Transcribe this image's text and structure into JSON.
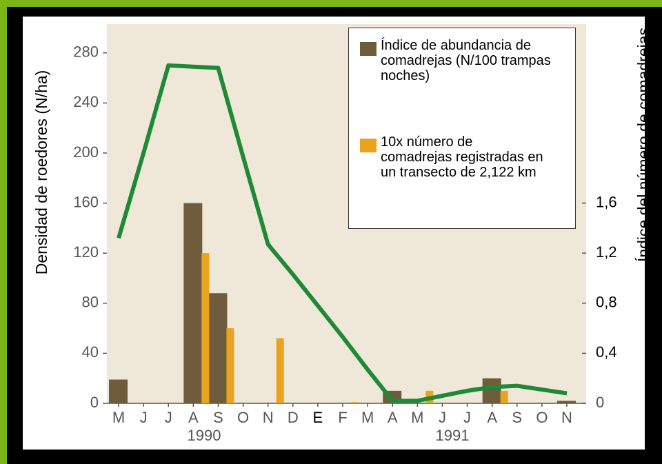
{
  "chart_data": {
    "type": "bar",
    "y_label": "Densidad de roedores (N/ha)",
    "y2_label": "Índice del número de comadrejas",
    "categories": [
      "M",
      "J",
      "J",
      "A",
      "S",
      "O",
      "N",
      "D",
      "E",
      "F",
      "M",
      "A",
      "M",
      "J",
      "J",
      "A",
      "S",
      "O",
      "N"
    ],
    "group_labels": [
      "1990",
      "1991"
    ],
    "series": [
      {
        "name": "Índice de abundancia de comadrejas (N/100 trampas noches)",
        "color": "#6e5c3c",
        "values": [
          19,
          null,
          null,
          160,
          88,
          null,
          null,
          null,
          null,
          null,
          null,
          10,
          null,
          null,
          null,
          20,
          null,
          null,
          2
        ]
      },
      {
        "name": "10x número de comadrejas registradas en un transecto de 2,122 km",
        "color": "#e8a41e",
        "values": [
          null,
          null,
          null,
          120,
          60,
          null,
          52,
          null,
          null,
          1,
          null,
          null,
          10,
          null,
          null,
          10,
          null,
          null,
          null
        ]
      },
      {
        "type": "line",
        "color": "#1e8a35",
        "values": [
          132,
          200,
          270,
          269,
          268,
          197,
          127,
          103,
          78,
          53,
          27,
          2,
          2,
          6,
          10,
          13,
          14,
          11,
          8
        ]
      }
    ],
    "ylim": [
      0,
      303
    ],
    "yticks": [
      0,
      40,
      80,
      120,
      160,
      200,
      240,
      280
    ],
    "y2lim": [
      0,
      3.03
    ],
    "y2ticks": [
      0,
      {
        "value": 0.4,
        "label": "0,4"
      },
      {
        "value": 0.8,
        "label": "0,8"
      },
      {
        "value": 1.2,
        "label": "1,2"
      },
      {
        "value": 1.6,
        "label": "1,6"
      }
    ]
  }
}
